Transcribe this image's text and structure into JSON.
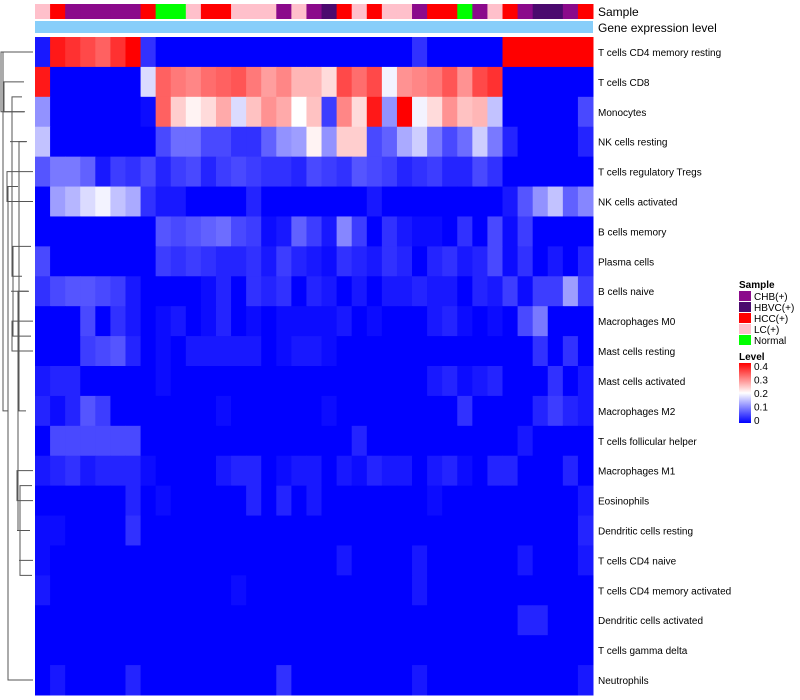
{
  "chart_data": {
    "type": "heatmap",
    "annotation_track_label": "Sample",
    "value_track_label": "Gene expression level",
    "samples": [
      "LC(+)",
      "HCC(+)",
      "CHB(+)",
      "CHB(+)",
      "CHB(+)",
      "CHB(+)",
      "CHB(+)",
      "HCC(+)",
      "Normal",
      "Normal",
      "LC(+)",
      "HCC(+)",
      "HCC(+)",
      "LC(+)",
      "LC(+)",
      "LC(+)",
      "CHB(+)",
      "LC(+)",
      "CHB(+)",
      "HBVC(+)",
      "HCC(+)",
      "LC(+)",
      "HCC(+)",
      "LC(+)",
      "LC(+)",
      "CHB(+)",
      "HCC(+)",
      "HCC(+)",
      "Normal",
      "CHB(+)",
      "LC(+)",
      "HCC(+)",
      "CHB(+)",
      "HBVC(+)",
      "HBVC(+)",
      "CHB(+)",
      "HCC(+)"
    ],
    "rows": [
      {
        "name": "T cells CD4 memory resting",
        "values": [
          0.02,
          0.4,
          0.38,
          0.36,
          0.34,
          0.38,
          0.42,
          0.04,
          0,
          0,
          0,
          0,
          0,
          0,
          0,
          0,
          0,
          0,
          0,
          0,
          0,
          0,
          0,
          0,
          0,
          0.04,
          0,
          0,
          0,
          0,
          0,
          0.42,
          0.42,
          0.42,
          0.42,
          0.42,
          0.42
        ]
      },
      {
        "name": "T cells CD8",
        "values": [
          0.4,
          0,
          0,
          0,
          0,
          0,
          0,
          0.18,
          0.34,
          0.32,
          0.31,
          0.33,
          0.34,
          0.35,
          0.32,
          0.29,
          0.31,
          0.27,
          0.27,
          0.24,
          0.36,
          0.33,
          0.36,
          0.2,
          0.3,
          0.31,
          0.32,
          0.35,
          0.3,
          0.36,
          0.38,
          0,
          0,
          0,
          0,
          0,
          0
        ]
      },
      {
        "name": "Monocytes",
        "values": [
          0.12,
          0,
          0,
          0,
          0,
          0,
          0,
          0.01,
          0.34,
          0.25,
          0.22,
          0.24,
          0.28,
          0.18,
          0.26,
          0.3,
          0.28,
          0.21,
          0.26,
          0.05,
          0.31,
          0.24,
          0.4,
          0.12,
          0.42,
          0.2,
          0.24,
          0.3,
          0.26,
          0.27,
          0.16,
          0,
          0,
          0,
          0,
          0,
          0.06
        ]
      },
      {
        "name": "NK cells resting",
        "values": [
          0.16,
          0,
          0,
          0,
          0,
          0,
          0,
          0,
          0.06,
          0.09,
          0.09,
          0.06,
          0.06,
          0.04,
          0.04,
          0.08,
          0.12,
          0.13,
          0.22,
          0.12,
          0.25,
          0.25,
          0.06,
          0.08,
          0.14,
          0.17,
          0.1,
          0.06,
          0.09,
          0.17,
          0.1,
          0.03,
          0,
          0,
          0,
          0,
          0.03
        ]
      },
      {
        "name": "T cells regulatory  Tregs",
        "values": [
          0.07,
          0.1,
          0.1,
          0.08,
          0.02,
          0.05,
          0.04,
          0.06,
          0.03,
          0.05,
          0.06,
          0.03,
          0.05,
          0.06,
          0.05,
          0.04,
          0.04,
          0.03,
          0.06,
          0.05,
          0.04,
          0.07,
          0.06,
          0.05,
          0.03,
          0.04,
          0.05,
          0.03,
          0.03,
          0.06,
          0.04,
          0,
          0,
          0,
          0,
          0,
          0
        ]
      },
      {
        "name": "NK cells activated",
        "values": [
          0,
          0.13,
          0.15,
          0.18,
          0.2,
          0.16,
          0.14,
          0.04,
          0.02,
          0.02,
          0,
          0,
          0,
          0,
          0.03,
          0,
          0,
          0,
          0,
          0,
          0,
          0,
          0.02,
          0,
          0,
          0,
          0,
          0,
          0,
          0,
          0,
          0.02,
          0.07,
          0.12,
          0.16,
          0.08,
          0.11
        ]
      },
      {
        "name": "B cells memory",
        "values": [
          0,
          0,
          0,
          0,
          0,
          0,
          0,
          0,
          0.07,
          0.06,
          0.07,
          0.08,
          0.09,
          0.06,
          0.05,
          0.01,
          0.02,
          0.08,
          0.05,
          0.02,
          0.11,
          0.05,
          0,
          0.04,
          0.02,
          0.01,
          0.01,
          0,
          0.04,
          0,
          0.06,
          0.01,
          0.05,
          0,
          0,
          0,
          0
        ]
      },
      {
        "name": "Plasma cells",
        "values": [
          0.06,
          0,
          0,
          0,
          0,
          0,
          0,
          0,
          0.05,
          0.04,
          0.05,
          0.04,
          0.03,
          0.03,
          0.04,
          0.02,
          0.05,
          0.03,
          0.02,
          0.01,
          0.04,
          0.03,
          0.02,
          0.04,
          0.03,
          0,
          0.03,
          0.04,
          0.02,
          0.03,
          0.06,
          0.01,
          0.04,
          0,
          0.02,
          0,
          0.03
        ]
      },
      {
        "name": "B cells naive",
        "values": [
          0.04,
          0.06,
          0.07,
          0.07,
          0.06,
          0.05,
          0.02,
          0,
          0,
          0,
          0,
          0.01,
          0.03,
          0,
          0.04,
          0.03,
          0.04,
          0,
          0.03,
          0.02,
          0,
          0.02,
          0,
          0.02,
          0.02,
          0.03,
          0.02,
          0.02,
          0,
          0.03,
          0.02,
          0.05,
          0.01,
          0.05,
          0.05,
          0.13,
          0.05
        ]
      },
      {
        "name": "Macrophages M0",
        "values": [
          0,
          0,
          0,
          0.06,
          0,
          0.04,
          0.02,
          0,
          0.01,
          0.02,
          0,
          0.01,
          0.03,
          0,
          0.01,
          0,
          0.01,
          0.01,
          0.01,
          0.01,
          0.02,
          0,
          0.01,
          0,
          0,
          0,
          0.02,
          0.03,
          0.01,
          0,
          0.01,
          0,
          0.06,
          0.1,
          0,
          0,
          0
        ]
      },
      {
        "name": "Mast cells resting",
        "values": [
          0,
          0,
          0,
          0.05,
          0.06,
          0.07,
          0.03,
          0,
          0.01,
          0,
          0.02,
          0.02,
          0.02,
          0.02,
          0.02,
          0,
          0.01,
          0.02,
          0.02,
          0.01,
          0,
          0,
          0,
          0,
          0,
          0,
          0,
          0,
          0,
          0,
          0,
          0,
          0,
          0.04,
          0,
          0.04,
          0
        ]
      },
      {
        "name": "Mast cells activated",
        "values": [
          0.02,
          0.03,
          0.03,
          0,
          0,
          0,
          0,
          0,
          0.01,
          0,
          0,
          0,
          0,
          0,
          0,
          0,
          0,
          0,
          0,
          0,
          0,
          0,
          0,
          0,
          0,
          0,
          0.02,
          0.03,
          0.01,
          0.02,
          0.03,
          0,
          0,
          0,
          0.04,
          0,
          0.02
        ]
      },
      {
        "name": "Macrophages M2",
        "values": [
          0.03,
          0.01,
          0.03,
          0.07,
          0.05,
          0,
          0,
          0,
          0,
          0,
          0,
          0,
          0.01,
          0,
          0,
          0,
          0,
          0,
          0,
          0.01,
          0,
          0,
          0,
          0,
          0,
          0,
          0,
          0,
          0.04,
          0,
          0,
          0,
          0,
          0.03,
          0.05,
          0.03,
          0.02
        ]
      },
      {
        "name": "T cells follicular helper",
        "values": [
          0,
          0.06,
          0.06,
          0.06,
          0.06,
          0.06,
          0.06,
          0,
          0,
          0,
          0,
          0,
          0,
          0,
          0,
          0,
          0,
          0,
          0,
          0,
          0,
          0.03,
          0,
          0,
          0,
          0,
          0,
          0,
          0,
          0,
          0,
          0,
          0.02,
          0,
          0,
          0,
          0
        ]
      },
      {
        "name": "Macrophages M1",
        "values": [
          0.02,
          0.03,
          0.04,
          0.02,
          0.03,
          0.03,
          0.03,
          0.01,
          0,
          0,
          0,
          0,
          0.02,
          0.03,
          0.03,
          0,
          0.01,
          0.02,
          0.02,
          0,
          0.02,
          0.01,
          0.03,
          0.02,
          0.02,
          0,
          0.02,
          0.03,
          0.01,
          0,
          0.03,
          0.03,
          0,
          0,
          0,
          0.03,
          0
        ]
      },
      {
        "name": "Eosinophils",
        "values": [
          0,
          0,
          0,
          0,
          0,
          0,
          0.03,
          0,
          0.01,
          0,
          0,
          0,
          0,
          0,
          0.03,
          0,
          0.03,
          0,
          0.02,
          0,
          0,
          0,
          0,
          0,
          0,
          0,
          0.01,
          0,
          0,
          0,
          0,
          0,
          0,
          0,
          0,
          0,
          0.02
        ]
      },
      {
        "name": "Dendritic cells resting",
        "values": [
          0.01,
          0.01,
          0,
          0,
          0,
          0,
          0.04,
          0,
          0,
          0,
          0,
          0,
          0,
          0,
          0,
          0,
          0,
          0,
          0,
          0,
          0,
          0,
          0,
          0,
          0,
          0,
          0,
          0,
          0,
          0,
          0,
          0,
          0,
          0,
          0,
          0,
          0.03
        ]
      },
      {
        "name": "T cells CD4 naive",
        "values": [
          0.01,
          0,
          0,
          0,
          0,
          0,
          0,
          0,
          0,
          0,
          0,
          0,
          0,
          0,
          0,
          0,
          0,
          0,
          0,
          0,
          0.02,
          0,
          0,
          0,
          0,
          0.02,
          0,
          0,
          0,
          0,
          0,
          0,
          0.02,
          0,
          0,
          0,
          0.02
        ]
      },
      {
        "name": "T cells CD4 memory activated",
        "values": [
          0.02,
          0,
          0,
          0,
          0,
          0,
          0,
          0,
          0,
          0,
          0,
          0,
          0,
          0.01,
          0,
          0,
          0,
          0,
          0,
          0,
          0,
          0,
          0,
          0,
          0,
          0.02,
          0,
          0,
          0,
          0,
          0,
          0,
          0,
          0,
          0,
          0,
          0
        ]
      },
      {
        "name": "Dendritic cells activated",
        "values": [
          0,
          0,
          0,
          0,
          0,
          0,
          0,
          0,
          0,
          0,
          0,
          0,
          0,
          0,
          0,
          0,
          0,
          0,
          0,
          0,
          0,
          0,
          0,
          0,
          0,
          0,
          0,
          0,
          0,
          0,
          0,
          0,
          0.03,
          0.03,
          0,
          0,
          0
        ]
      },
      {
        "name": "T cells gamma delta",
        "values": [
          0,
          0,
          0,
          0,
          0,
          0,
          0,
          0,
          0,
          0,
          0,
          0,
          0,
          0,
          0,
          0,
          0,
          0,
          0,
          0,
          0,
          0,
          0,
          0,
          0,
          0,
          0,
          0,
          0,
          0,
          0,
          0,
          0,
          0,
          0,
          0,
          0
        ]
      },
      {
        "name": "Neutrophils",
        "values": [
          0,
          0.02,
          0,
          0,
          0,
          0,
          0.03,
          0,
          0,
          0,
          0,
          0,
          0,
          0,
          0,
          0,
          0.04,
          0,
          0,
          0,
          0,
          0,
          0,
          0,
          0,
          0.02,
          0,
          0,
          0,
          0,
          0,
          0,
          0,
          0,
          0,
          0,
          0.02
        ]
      }
    ],
    "legend_sample": {
      "title": "Sample",
      "entries": [
        {
          "label": "CHB(+)",
          "color": "#8b0a8b"
        },
        {
          "label": "HBVC(+)",
          "color": "#4b0a6e"
        },
        {
          "label": "HCC(+)",
          "color": "#ff0000"
        },
        {
          "label": "LC(+)",
          "color": "#ffc0cb"
        },
        {
          "label": "Normal",
          "color": "#00ff00"
        }
      ]
    },
    "legend_level": {
      "title": "Level",
      "ticks": [
        "0.4",
        "0.3",
        "0.2",
        "0.1",
        "0"
      ],
      "range": [
        0,
        0.42
      ]
    },
    "colors": {
      "low": "#0000ff",
      "mid": "#ffffff",
      "high": "#ff0000",
      "value_track": "#87cefa"
    }
  }
}
